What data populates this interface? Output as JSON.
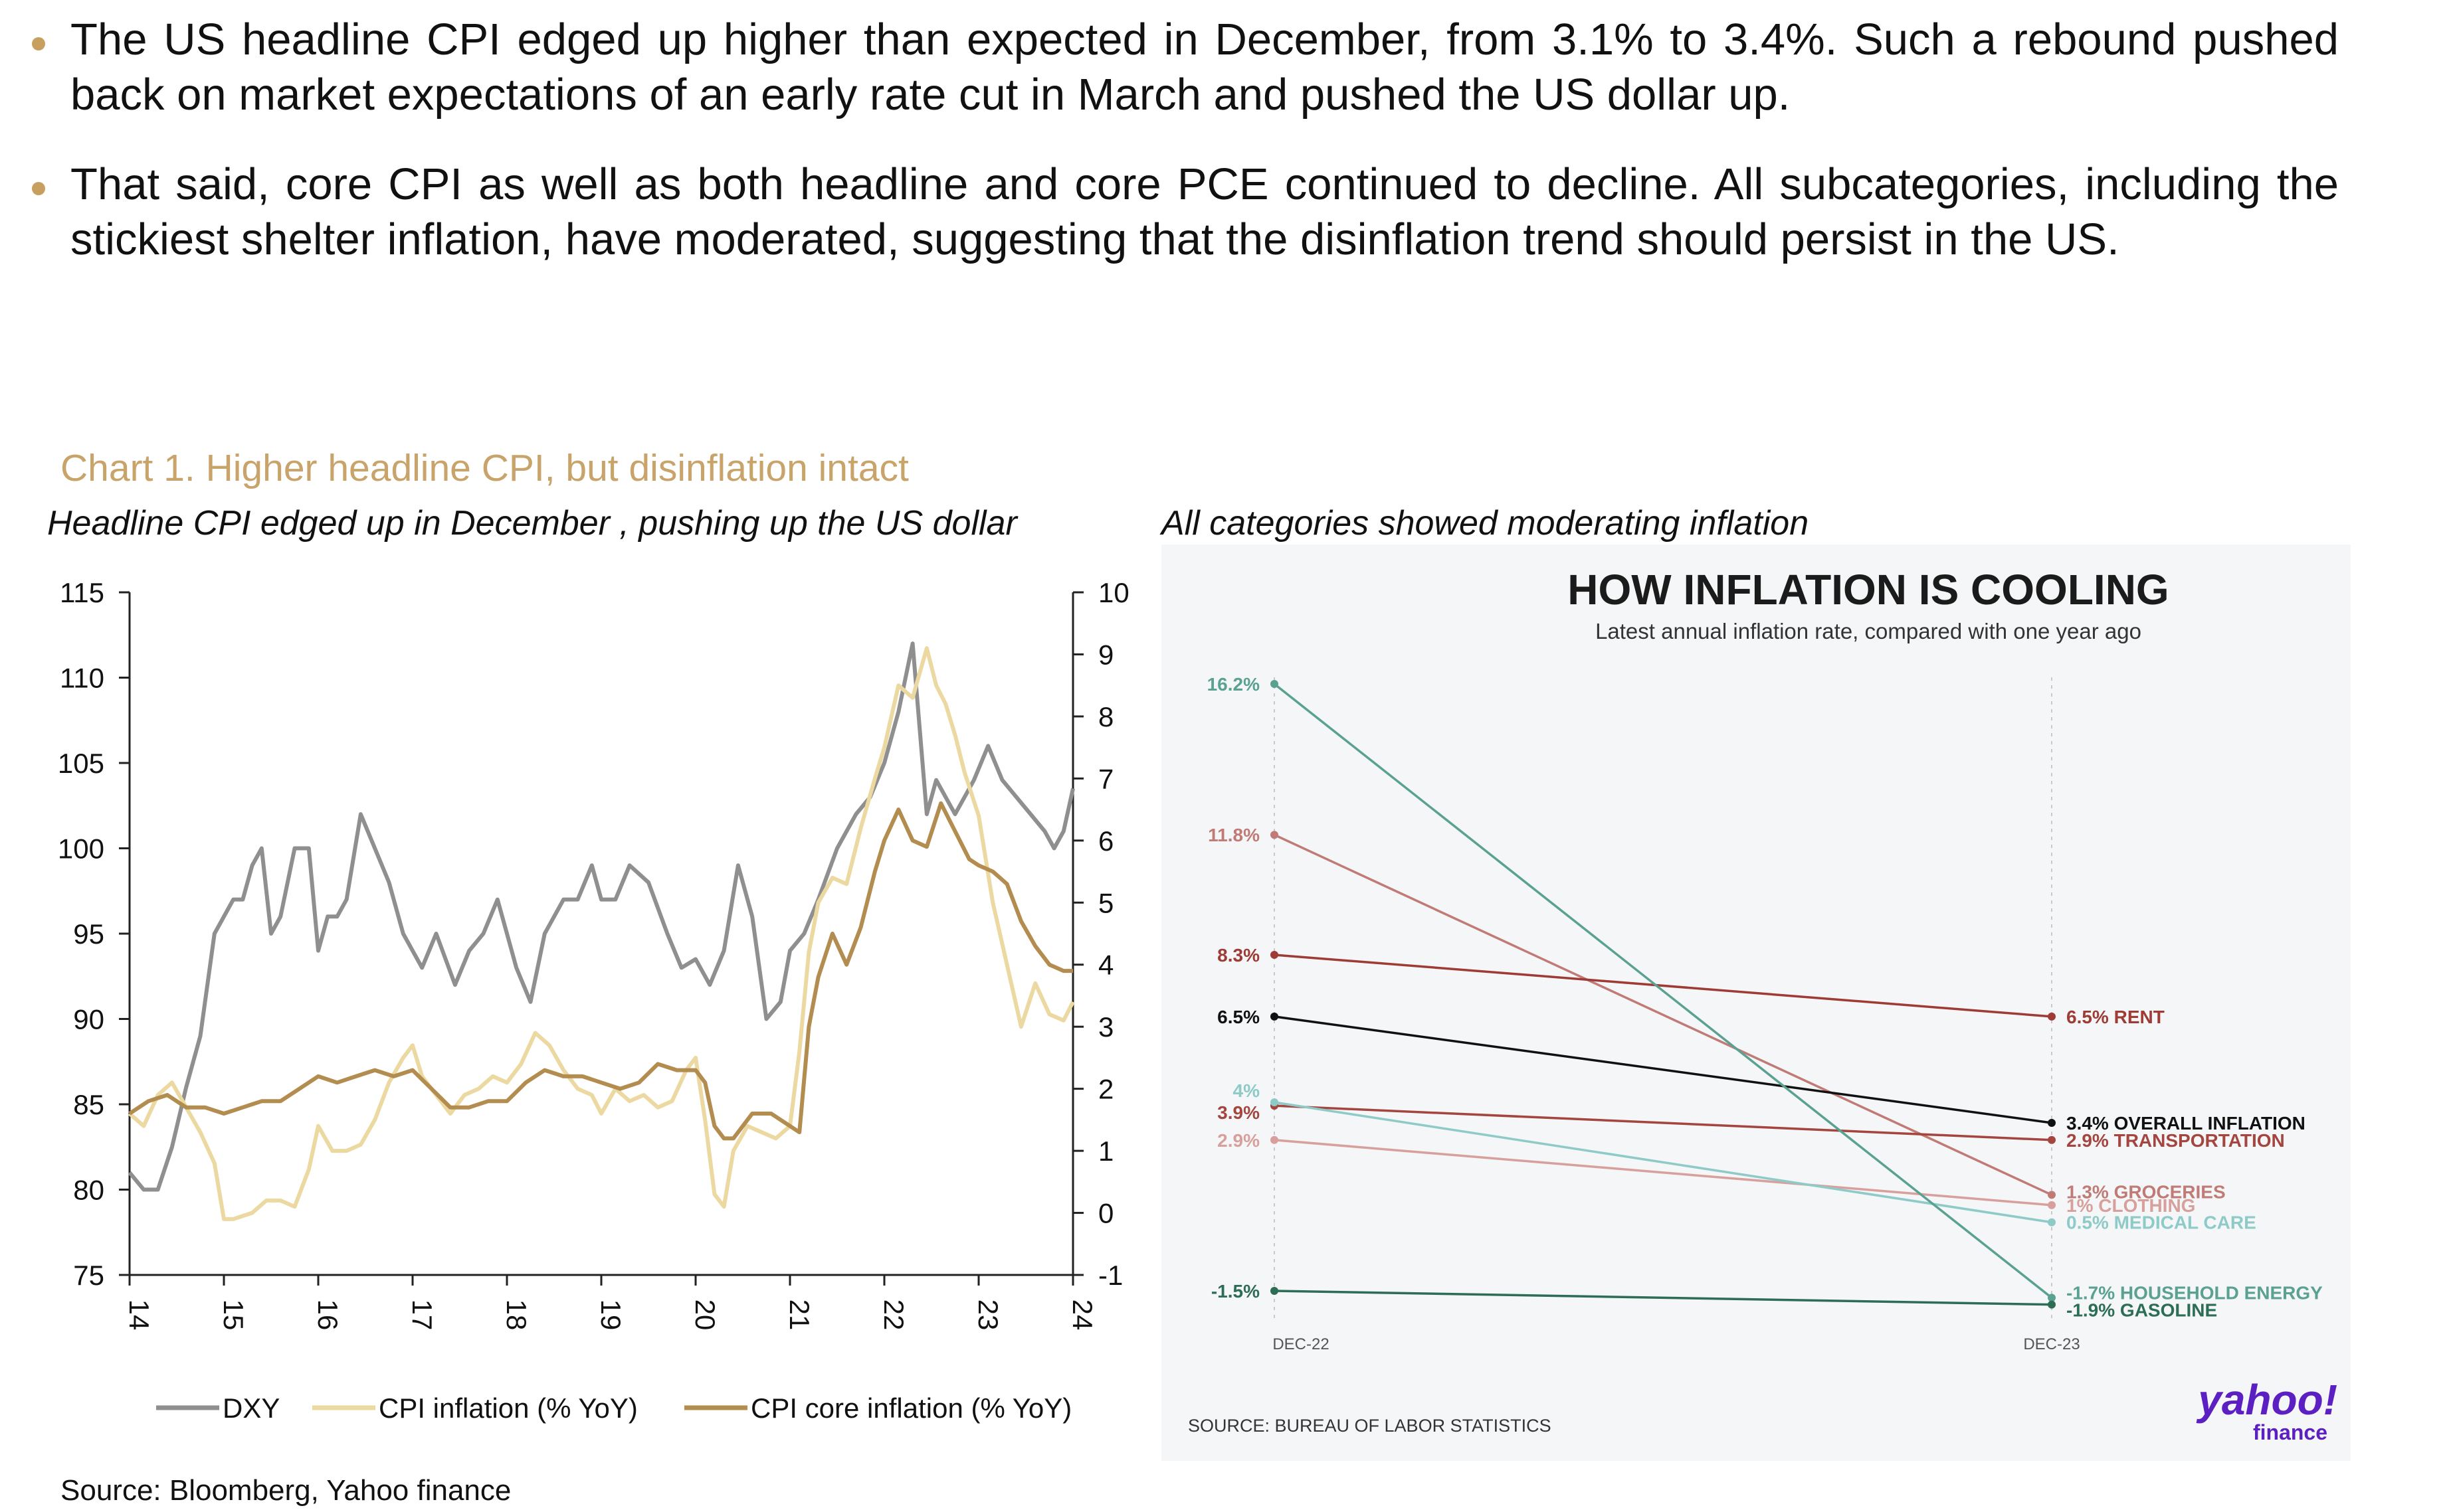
{
  "bullets": [
    "The US headline CPI edged up higher than expected in December, from 3.1% to 3.4%. Such a rebound pushed back on market expectations of an early rate cut in March and pushed the US dollar up.",
    "That said, core CPI as well as both headline and core PCE continued to decline. All subcategories, including the stickiest shelter inflation, have moderated, suggesting that the disinflation trend should persist in the US."
  ],
  "chart_title": "Chart 1. Higher headline CPI, but disinflation intact",
  "left_subtitle": "Headline CPI edged up in December , pushing up the US dollar",
  "right_subtitle": "All categories showed moderating inflation",
  "source": "Source: Bloomberg, Yahoo finance",
  "chart_data": [
    {
      "type": "line",
      "title": "Headline CPI edged up in December , pushing up the US dollar",
      "x_ticks": [
        "14",
        "15",
        "16",
        "17",
        "18",
        "19",
        "20",
        "21",
        "22",
        "23",
        "24"
      ],
      "xlim": [
        2014,
        2024
      ],
      "ylim_left": [
        75,
        115
      ],
      "y_ticks_left": [
        75,
        80,
        85,
        90,
        95,
        100,
        105,
        110,
        115
      ],
      "ylim_right": [
        -1,
        10
      ],
      "y_ticks_right": [
        -1,
        0,
        1,
        2,
        3,
        4,
        5,
        6,
        7,
        8,
        9,
        10
      ],
      "legend": [
        "DXY",
        "CPI inflation (% YoY)",
        "CPI core inflation (% YoY)"
      ],
      "series": [
        {
          "name": "DXY",
          "axis": "left",
          "color": "#8f8f8f",
          "x": [
            2014.0,
            2014.15,
            2014.3,
            2014.45,
            2014.6,
            2014.75,
            2014.9,
            2015.0,
            2015.1,
            2015.2,
            2015.3,
            2015.4,
            2015.5,
            2015.6,
            2015.75,
            2015.9,
            2016.0,
            2016.1,
            2016.2,
            2016.3,
            2016.45,
            2016.6,
            2016.75,
            2016.9,
            2017.0,
            2017.1,
            2017.25,
            2017.45,
            2017.6,
            2017.75,
            2017.9,
            2018.0,
            2018.1,
            2018.25,
            2018.4,
            2018.6,
            2018.75,
            2018.9,
            2019.0,
            2019.15,
            2019.3,
            2019.5,
            2019.7,
            2019.85,
            2020.0,
            2020.15,
            2020.3,
            2020.45,
            2020.6,
            2020.75,
            2020.9,
            2021.0,
            2021.15,
            2021.3,
            2021.5,
            2021.7,
            2021.85,
            2022.0,
            2022.15,
            2022.3,
            2022.45,
            2022.55,
            2022.65,
            2022.75,
            2022.85,
            2022.95,
            2023.1,
            2023.25,
            2023.4,
            2023.55,
            2023.7,
            2023.8,
            2023.9,
            2024.0
          ],
          "values": [
            81,
            80,
            80,
            82.5,
            86,
            89,
            95,
            96,
            97,
            97,
            99,
            100,
            95,
            96,
            100,
            100,
            94,
            96,
            96,
            97,
            102,
            100,
            98,
            95,
            94,
            93,
            95,
            92,
            94,
            95,
            97,
            95,
            93,
            91,
            95,
            97,
            97,
            99,
            97,
            97,
            99,
            98,
            95,
            93,
            93.5,
            92,
            94,
            99,
            96,
            90,
            91,
            94,
            95,
            97,
            100,
            102,
            103,
            105,
            108,
            112,
            102,
            104,
            103,
            102,
            103,
            104,
            106,
            104,
            103,
            102,
            101,
            100,
            101,
            103.5
          ]
        },
        {
          "name": "CPI inflation (% YoY)",
          "axis": "right",
          "color": "#ecd9a2",
          "x": [
            2014.0,
            2014.15,
            2014.3,
            2014.45,
            2014.6,
            2014.75,
            2014.9,
            2015.0,
            2015.1,
            2015.3,
            2015.45,
            2015.6,
            2015.75,
            2015.9,
            2016.0,
            2016.15,
            2016.3,
            2016.45,
            2016.6,
            2016.75,
            2016.9,
            2017.0,
            2017.1,
            2017.25,
            2017.4,
            2017.55,
            2017.7,
            2017.85,
            2018.0,
            2018.15,
            2018.3,
            2018.45,
            2018.6,
            2018.75,
            2018.9,
            2019.0,
            2019.15,
            2019.3,
            2019.45,
            2019.6,
            2019.75,
            2019.9,
            2020.0,
            2020.1,
            2020.2,
            2020.3,
            2020.4,
            2020.55,
            2020.7,
            2020.85,
            2021.0,
            2021.1,
            2021.2,
            2021.3,
            2021.45,
            2021.6,
            2021.75,
            2021.9,
            2022.0,
            2022.15,
            2022.3,
            2022.45,
            2022.55,
            2022.65,
            2022.75,
            2022.85,
            2023.0,
            2023.15,
            2023.3,
            2023.45,
            2023.6,
            2023.75,
            2023.9,
            2024.0
          ],
          "values": [
            1.6,
            1.4,
            1.9,
            2.1,
            1.7,
            1.3,
            0.8,
            -0.1,
            -0.1,
            0.0,
            0.2,
            0.2,
            0.1,
            0.7,
            1.4,
            1.0,
            1.0,
            1.1,
            1.5,
            2.1,
            2.5,
            2.7,
            2.2,
            1.9,
            1.6,
            1.9,
            2.0,
            2.2,
            2.1,
            2.4,
            2.9,
            2.7,
            2.3,
            2.0,
            1.9,
            1.6,
            2.0,
            1.8,
            1.9,
            1.7,
            1.8,
            2.3,
            2.5,
            1.5,
            0.3,
            0.1,
            1.0,
            1.4,
            1.3,
            1.2,
            1.4,
            2.6,
            4.2,
            5.0,
            5.4,
            5.3,
            6.2,
            7.0,
            7.5,
            8.5,
            8.3,
            9.1,
            8.5,
            8.2,
            7.7,
            7.1,
            6.4,
            5.0,
            4.0,
            3.0,
            3.7,
            3.2,
            3.1,
            3.4
          ]
        },
        {
          "name": "CPI core inflation (% YoY)",
          "axis": "right",
          "color": "#b38c4f",
          "x": [
            2014.0,
            2014.2,
            2014.4,
            2014.6,
            2014.8,
            2015.0,
            2015.2,
            2015.4,
            2015.6,
            2015.8,
            2016.0,
            2016.2,
            2016.4,
            2016.6,
            2016.8,
            2017.0,
            2017.2,
            2017.4,
            2017.6,
            2017.8,
            2018.0,
            2018.2,
            2018.4,
            2018.6,
            2018.8,
            2019.0,
            2019.2,
            2019.4,
            2019.6,
            2019.8,
            2020.0,
            2020.1,
            2020.2,
            2020.3,
            2020.4,
            2020.6,
            2020.8,
            2021.0,
            2021.1,
            2021.2,
            2021.3,
            2021.45,
            2021.6,
            2021.75,
            2021.9,
            2022.0,
            2022.15,
            2022.3,
            2022.45,
            2022.6,
            2022.7,
            2022.8,
            2022.9,
            2023.0,
            2023.15,
            2023.3,
            2023.45,
            2023.6,
            2023.75,
            2023.9,
            2024.0
          ],
          "values": [
            1.6,
            1.8,
            1.9,
            1.7,
            1.7,
            1.6,
            1.7,
            1.8,
            1.8,
            2.0,
            2.2,
            2.1,
            2.2,
            2.3,
            2.2,
            2.3,
            2.0,
            1.7,
            1.7,
            1.8,
            1.8,
            2.1,
            2.3,
            2.2,
            2.2,
            2.1,
            2.0,
            2.1,
            2.4,
            2.3,
            2.3,
            2.1,
            1.4,
            1.2,
            1.2,
            1.6,
            1.6,
            1.4,
            1.3,
            3.0,
            3.8,
            4.5,
            4.0,
            4.6,
            5.5,
            6.0,
            6.5,
            6.0,
            5.9,
            6.6,
            6.3,
            6.0,
            5.7,
            5.6,
            5.5,
            5.3,
            4.7,
            4.3,
            4.0,
            3.9,
            3.9
          ]
        }
      ]
    },
    {
      "type": "slope",
      "title": "HOW INFLATION IS COOLING",
      "subtitle": "Latest annual inflation rate, compared with one year ago",
      "x_labels": [
        "DEC-22",
        "DEC-23"
      ],
      "source": "SOURCE: BUREAU OF LABOR STATISTICS",
      "brand": "yahoo!",
      "brand_sub": "finance",
      "series": [
        {
          "name": "GROCERIES",
          "start": 11.8,
          "end": 1.3,
          "start_label": "11.8%",
          "end_label": "1.3% GROCERIES",
          "color": "#c07b76"
        },
        {
          "name": "OVERALL INFLATION",
          "start": 6.5,
          "end": 3.4,
          "start_label": "6.5%",
          "end_label": "3.4% OVERALL INFLATION",
          "color": "#111111"
        },
        {
          "name": "RENT",
          "start": 8.3,
          "end": 6.5,
          "start_label": "8.3%",
          "end_label": "6.5% RENT",
          "color": "#9e3b35"
        },
        {
          "name": "TRANSPORTATION",
          "start": 3.9,
          "end": 2.9,
          "start_label": "3.9%",
          "end_label": "2.9% TRANSPORTATION",
          "color": "#a4453f"
        },
        {
          "name": "CLOTHING",
          "start": 2.9,
          "end": 1.0,
          "start_label": "2.9%",
          "end_label": "1% CLOTHING",
          "color": "#d7a09c"
        },
        {
          "name": "MEDICAL CARE",
          "start": 4.0,
          "end": 0.5,
          "start_label": "4%",
          "end_label": "0.5% MEDICAL CARE",
          "color": "#8ecac7"
        },
        {
          "name": "HOUSEHOLD ENERGY",
          "start": 16.2,
          "end": -1.7,
          "start_label": "16.2%",
          "end_label": "-1.7% HOUSEHOLD ENERGY",
          "color": "#5aa191"
        },
        {
          "name": "GASOLINE",
          "start": -1.5,
          "end": -1.9,
          "start_label": "-1.5%",
          "end_label": "-1.9% GASOLINE",
          "color": "#2e6d55"
        }
      ]
    }
  ]
}
